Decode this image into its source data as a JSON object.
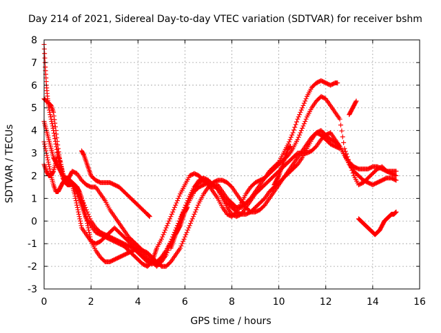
{
  "chart_data": {
    "type": "scatter",
    "title": "Day 214 of 2021, Sidereal Day-to-day VTEC variation (SDTVAR) for receiver bshm",
    "xlabel": "GPS time / hours",
    "ylabel": "SDTVAR / TECUs",
    "xlim": [
      0,
      16
    ],
    "ylim": [
      -3,
      8
    ],
    "xticks": [
      "0",
      "2",
      "4",
      "6",
      "8",
      "10",
      "12",
      "14",
      "16"
    ],
    "yticks": [
      "-3",
      "-2",
      "-1",
      "0",
      "1",
      "2",
      "3",
      "4",
      "5",
      "6",
      "7",
      "8"
    ],
    "grid": true,
    "legend": "none",
    "marker": "+",
    "color": "#ff0000",
    "series": [
      {
        "x": [
          0.0,
          0.05,
          0.1,
          0.15,
          0.2,
          0.3,
          0.4,
          0.5,
          0.6,
          0.7,
          0.8,
          0.9,
          1.0,
          1.1,
          1.2,
          1.3,
          1.4,
          1.5,
          1.6,
          1.7,
          1.8,
          2.0,
          2.2,
          2.4,
          2.6,
          2.8,
          3.0,
          3.2,
          3.4,
          3.6,
          3.8,
          4.0,
          4.2,
          4.4,
          4.5,
          4.6,
          4.7,
          4.8,
          5.0,
          5.2,
          5.4,
          5.6,
          5.8,
          6.0,
          6.2,
          6.4,
          6.6,
          6.8,
          7.0,
          7.2,
          7.4,
          7.6,
          7.8,
          8.0,
          8.2,
          8.4,
          8.6,
          8.8,
          9.0,
          9.2,
          9.4,
          9.6,
          9.8,
          10.0,
          10.2,
          10.4,
          10.6,
          10.8,
          11.0,
          11.2,
          11.4,
          11.6,
          11.8,
          12.0,
          12.2,
          12.4,
          12.5
        ],
        "y": [
          7.8,
          6.8,
          6.0,
          5.4,
          5.0,
          4.5,
          4.0,
          3.4,
          2.8,
          2.3,
          1.9,
          1.7,
          1.6,
          1.6,
          1.7,
          1.5,
          1.3,
          1.0,
          0.7,
          0.4,
          0.1,
          -0.2,
          -0.5,
          -0.6,
          -0.7,
          -0.8,
          -0.9,
          -1.0,
          -1.1,
          -1.3,
          -1.5,
          -1.7,
          -1.9,
          -2.0,
          -1.9,
          -1.8,
          -1.5,
          -1.2,
          -0.8,
          -0.3,
          0.2,
          0.7,
          1.2,
          1.6,
          2.0,
          2.1,
          2.0,
          1.8,
          1.6,
          1.5,
          1.6,
          1.3,
          1.0,
          0.8,
          0.6,
          0.6,
          0.8,
          1.0,
          1.3,
          1.6,
          1.9,
          2.2,
          2.4,
          2.6,
          3.0,
          3.4,
          3.9,
          4.5,
          5.0,
          5.5,
          5.9,
          6.1,
          6.2,
          6.1,
          6.0,
          6.1,
          6.1
        ]
      },
      {
        "x": [
          0.0,
          0.1,
          0.2,
          0.3,
          0.4,
          0.5,
          0.6,
          0.7,
          0.8,
          0.9,
          1.0,
          1.1,
          1.2,
          1.4,
          1.6,
          1.8,
          2.0,
          2.2,
          2.4,
          2.6,
          2.8,
          3.0,
          3.2,
          3.4,
          3.6,
          3.8,
          4.0,
          4.2,
          4.4,
          4.6,
          4.8,
          5.0,
          5.2,
          5.4,
          5.6,
          5.8,
          6.0,
          6.2,
          6.4,
          6.6,
          6.8,
          7.0,
          7.2,
          7.4,
          7.6,
          7.8,
          8.0,
          8.2,
          8.4,
          8.6,
          8.8,
          9.0,
          9.2,
          9.4,
          9.6,
          9.8,
          10.0,
          10.2,
          10.4,
          10.6,
          10.8,
          11.0,
          11.2,
          11.4,
          11.6,
          11.8,
          12.0,
          12.2,
          12.4,
          12.6,
          12.8,
          13.0,
          13.2,
          13.4,
          13.6,
          13.8,
          14.0,
          14.2,
          14.4,
          14.6,
          14.8,
          15.0
        ],
        "y": [
          5.4,
          5.3,
          5.2,
          5.1,
          4.8,
          4.0,
          3.2,
          2.5,
          2.1,
          1.8,
          1.8,
          2.0,
          2.2,
          2.1,
          1.8,
          1.6,
          1.5,
          1.5,
          1.2,
          0.9,
          0.5,
          0.2,
          -0.1,
          -0.4,
          -0.7,
          -0.9,
          -1.1,
          -1.3,
          -1.5,
          -1.8,
          -2.0,
          -1.8,
          -1.5,
          -1.0,
          -0.5,
          0.0,
          0.6,
          1.1,
          1.5,
          1.7,
          1.8,
          1.6,
          1.3,
          1.0,
          0.6,
          0.3,
          0.2,
          0.4,
          0.8,
          1.2,
          1.5,
          1.7,
          1.8,
          1.9,
          2.1,
          2.3,
          2.5,
          2.7,
          2.9,
          3.2,
          3.6,
          4.1,
          4.6,
          5.0,
          5.3,
          5.5,
          5.4,
          5.1,
          4.8,
          4.5,
          3.2,
          2.6,
          2.0,
          1.6,
          1.7,
          1.9,
          2.1,
          2.3,
          2.4,
          2.2,
          2.1,
          2.0
        ]
      },
      {
        "x": [
          0.0,
          0.1,
          0.2,
          0.3,
          0.4,
          0.5,
          0.6,
          0.7,
          0.8,
          0.9,
          1.0,
          1.1,
          1.2,
          1.3,
          1.4,
          1.5,
          1.6,
          1.8,
          2.0,
          2.2,
          2.4,
          2.6,
          2.8,
          3.0,
          3.2,
          3.4,
          3.6,
          3.8,
          4.0,
          4.2,
          4.4,
          4.6,
          4.8,
          5.0,
          5.2,
          5.4,
          5.6,
          5.8,
          6.0,
          6.2,
          6.4,
          6.6,
          6.8,
          7.0,
          7.2,
          7.4,
          7.6,
          7.8,
          8.0,
          8.2,
          8.4,
          8.6,
          8.8,
          9.0,
          9.2,
          9.4,
          9.6,
          9.8,
          10.0,
          10.2,
          10.4,
          10.6,
          10.8,
          11.0,
          11.2,
          11.4,
          11.6,
          11.8,
          12.0,
          12.2,
          12.4,
          12.6,
          12.8,
          13.0,
          13.2,
          13.4,
          13.6,
          13.8,
          14.0,
          14.2,
          14.4,
          14.6,
          14.8,
          15.0
        ],
        "y": [
          4.4,
          4.0,
          3.6,
          3.2,
          2.8,
          2.6,
          2.4,
          2.2,
          2.0,
          1.9,
          1.9,
          1.8,
          1.6,
          1.2,
          0.7,
          0.2,
          -0.3,
          -0.6,
          -0.9,
          -1.0,
          -0.9,
          -0.7,
          -0.5,
          -0.3,
          -0.5,
          -0.7,
          -0.9,
          -1.1,
          -1.3,
          -1.5,
          -1.7,
          -1.8,
          -1.9,
          -1.7,
          -1.4,
          -0.9,
          -0.4,
          0.1,
          0.6,
          1.1,
          1.5,
          1.8,
          1.9,
          1.8,
          1.6,
          1.4,
          1.0,
          0.6,
          0.3,
          0.2,
          0.3,
          0.6,
          0.9,
          1.2,
          1.4,
          1.6,
          1.8,
          2.0,
          2.2,
          2.4,
          2.6,
          2.8,
          3.0,
          3.0,
          3.0,
          3.1,
          3.3,
          3.6,
          3.8,
          3.9,
          3.6,
          3.3,
          2.9,
          2.6,
          2.4,
          2.3,
          2.3,
          2.3,
          2.4,
          2.4,
          2.3,
          2.2,
          2.2,
          2.2
        ]
      },
      {
        "x": [
          0.0,
          0.1,
          0.2,
          0.3,
          0.4,
          0.5,
          0.6,
          0.7,
          0.8,
          0.9,
          1.0,
          1.2,
          1.4,
          1.5,
          1.6,
          1.8,
          2.0,
          2.2,
          2.4,
          2.6,
          2.8,
          3.0,
          3.2,
          3.4,
          3.6,
          3.8,
          4.0,
          4.2,
          4.4,
          4.6,
          4.8,
          5.0,
          5.2,
          5.4,
          5.6,
          5.8,
          6.0,
          6.2,
          6.4,
          6.6,
          6.8,
          7.0,
          7.2,
          7.4,
          7.6,
          7.8,
          8.0,
          8.2,
          8.4,
          8.6,
          8.8,
          9.0,
          9.2,
          9.4,
          9.6,
          9.8,
          10.0,
          10.2,
          10.4,
          10.6,
          10.8,
          11.0,
          11.2,
          11.4,
          11.6,
          11.8,
          12.0,
          12.2,
          12.4,
          12.6,
          12.8,
          13.0,
          13.2,
          13.4,
          13.6,
          13.8,
          14.0,
          14.2,
          14.4,
          14.6,
          14.8,
          15.0
        ],
        "y": [
          3.5,
          3.0,
          2.5,
          2.0,
          1.6,
          1.3,
          1.3,
          1.5,
          1.7,
          1.8,
          1.8,
          1.7,
          1.5,
          1.3,
          1.0,
          0.5,
          0.0,
          -0.3,
          -0.5,
          -0.6,
          -0.7,
          -0.8,
          -0.9,
          -1.0,
          -1.1,
          -1.2,
          -1.4,
          -1.6,
          -1.8,
          -1.9,
          -1.8,
          -1.6,
          -1.3,
          -0.9,
          -0.4,
          0.1,
          0.5,
          0.9,
          1.3,
          1.5,
          1.6,
          1.7,
          1.6,
          1.4,
          1.1,
          0.8,
          0.6,
          0.4,
          0.3,
          0.3,
          0.4,
          0.6,
          0.8,
          1.0,
          1.3,
          1.5,
          1.7,
          1.9,
          2.1,
          2.3,
          2.5,
          2.8,
          3.2,
          3.6,
          3.9,
          4.0,
          3.8,
          3.6,
          3.5,
          3.3,
          2.9,
          2.5,
          2.2,
          2.0,
          1.8,
          1.7,
          1.6,
          1.7,
          1.8,
          1.9,
          1.9,
          1.8
        ]
      },
      {
        "x": [
          0.0,
          0.1,
          0.2,
          0.3,
          0.4,
          0.5,
          0.6,
          0.7,
          0.8,
          0.9,
          1.0,
          1.1,
          1.2,
          1.3,
          1.4,
          1.5,
          1.6,
          1.7,
          1.8,
          1.9,
          2.0,
          2.2,
          2.4,
          2.6,
          2.8,
          3.0,
          3.2,
          3.4,
          3.6,
          3.8,
          4.0,
          4.2,
          4.4,
          4.6,
          4.8,
          5.0,
          5.2,
          5.4,
          5.6,
          5.8,
          6.0,
          6.2,
          6.4,
          6.6,
          6.8,
          7.0,
          7.2,
          7.4,
          7.6,
          7.8,
          8.0,
          8.2,
          8.4,
          8.6,
          8.8,
          9.0,
          9.2,
          9.4,
          9.6,
          9.8,
          10.0,
          10.2,
          10.4,
          10.6,
          10.8,
          11.0,
          11.2,
          11.4,
          11.6,
          11.8,
          12.0,
          12.2,
          12.4,
          12.6
        ],
        "y": [
          2.5,
          2.2,
          2.0,
          2.0,
          2.2,
          2.6,
          3.0,
          2.6,
          2.1,
          1.8,
          1.7,
          1.6,
          1.7,
          1.6,
          1.5,
          1.3,
          1.0,
          0.6,
          0.1,
          -0.4,
          -0.9,
          -1.3,
          -1.6,
          -1.8,
          -1.8,
          -1.7,
          -1.6,
          -1.5,
          -1.4,
          -1.3,
          -1.2,
          -1.3,
          -1.4,
          -1.6,
          -1.8,
          -2.0,
          -2.0,
          -1.8,
          -1.5,
          -1.2,
          -0.7,
          -0.2,
          0.3,
          0.8,
          1.2,
          1.5,
          1.7,
          1.8,
          1.8,
          1.7,
          1.5,
          1.2,
          0.9,
          0.6,
          0.4,
          0.4,
          0.5,
          0.7,
          1.0,
          1.3,
          1.6,
          1.9,
          2.2,
          2.5,
          2.8,
          3.1,
          3.4,
          3.7,
          3.9,
          3.8,
          3.6,
          3.4,
          3.3,
          3.2
        ]
      },
      {
        "x": [
          1.6,
          1.7,
          1.8,
          1.9,
          2.0,
          2.2,
          2.4,
          2.6,
          2.8,
          3.0,
          3.2,
          3.4,
          3.6,
          3.8,
          4.0,
          4.2,
          4.4,
          4.5
        ],
        "y": [
          3.1,
          2.9,
          2.6,
          2.3,
          2.0,
          1.8,
          1.7,
          1.7,
          1.7,
          1.6,
          1.5,
          1.3,
          1.1,
          0.9,
          0.7,
          0.5,
          0.3,
          0.2
        ]
      },
      {
        "x": [
          5.4,
          5.5,
          5.6,
          5.7,
          5.8,
          5.9,
          6.0,
          6.1
        ],
        "y": [
          -1.2,
          -0.9,
          -0.6,
          -0.4,
          -0.2,
          0.1,
          0.4,
          0.6
        ]
      },
      {
        "x": [
          9.8,
          9.9,
          10.0,
          10.1,
          10.2,
          10.3,
          10.4,
          10.5
        ],
        "y": [
          1.6,
          1.8,
          2.0,
          2.3,
          2.6,
          2.9,
          3.2,
          3.3
        ]
      },
      {
        "x": [
          13.0,
          13.1,
          13.2,
          13.3
        ],
        "y": [
          4.7,
          4.9,
          5.1,
          5.3
        ]
      },
      {
        "x": [
          13.4,
          13.5,
          13.6,
          13.7,
          13.8,
          13.9,
          14.0,
          14.1,
          14.2,
          14.3,
          14.4,
          14.5,
          14.6,
          14.7,
          14.8,
          14.9,
          15.0
        ],
        "y": [
          0.1,
          0.0,
          -0.1,
          -0.2,
          -0.3,
          -0.4,
          -0.5,
          -0.6,
          -0.5,
          -0.4,
          -0.2,
          0.0,
          0.1,
          0.2,
          0.3,
          0.3,
          0.4
        ]
      }
    ]
  }
}
